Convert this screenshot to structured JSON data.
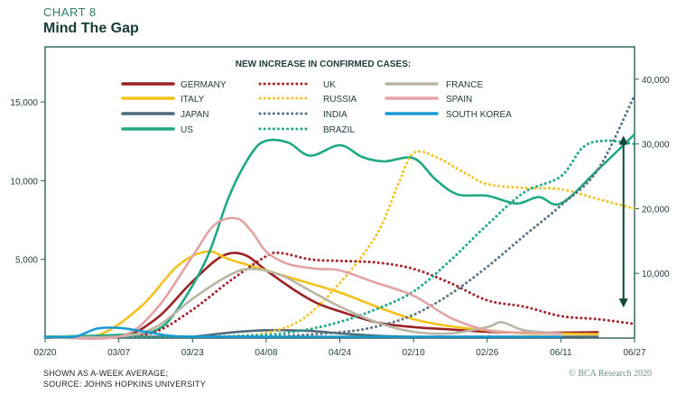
{
  "header": {
    "chart_label": "CHART 8",
    "title": "Mind The Gap"
  },
  "footer": {
    "note1": "SHOWN AS A-WEEK AVERAGE;",
    "note2": "SOURCE: JOHNS HOPKINS UNIVERSITY",
    "credit": "© BCA Research 2020"
  },
  "colors": {
    "frame": "#2b5f56",
    "grid": "#e6eeee",
    "arrow": "#14453d"
  },
  "chart_data": {
    "type": "line",
    "title": "Mind The Gap",
    "legend_title": "NEW INCREASE IN CONFIRMED CASES:",
    "legend_placement": "top-center",
    "grid": false,
    "x_ticks": [
      "02/20",
      "03/07",
      "03/23",
      "04/08",
      "04/24",
      "02/10",
      "02/26",
      "06/11",
      "06/27"
    ],
    "x_range": [
      0,
      8
    ],
    "y_left": {
      "ticks": [
        "5,000",
        "10,000",
        "15,000"
      ],
      "tick_values": [
        5000,
        10000,
        15000
      ],
      "range": [
        0,
        18500
      ]
    },
    "y_right": {
      "ticks": [
        "10,000",
        "20,000",
        "30,000",
        "40,000"
      ],
      "tick_values": [
        10000,
        20000,
        30000,
        40000
      ],
      "range": [
        0,
        45000
      ]
    },
    "series": [
      {
        "name": "GERMANY",
        "axis": "left",
        "color": "#9b2222",
        "style": "solid",
        "points": [
          [
            0,
            0
          ],
          [
            1,
            100
          ],
          [
            1.5,
            1200
          ],
          [
            2,
            3600
          ],
          [
            2.4,
            5200
          ],
          [
            2.7,
            5300
          ],
          [
            3,
            4300
          ],
          [
            3.4,
            3000
          ],
          [
            3.7,
            2200
          ],
          [
            4,
            1700
          ],
          [
            4.5,
            1000
          ],
          [
            5,
            700
          ],
          [
            5.5,
            550
          ],
          [
            6,
            400
          ],
          [
            6.5,
            350
          ],
          [
            7,
            350
          ],
          [
            7.5,
            380
          ]
        ]
      },
      {
        "name": "ITALY",
        "axis": "left",
        "color": "#f2c21b",
        "style": "solid",
        "points": [
          [
            0,
            0
          ],
          [
            0.7,
            150
          ],
          [
            1.3,
            2000
          ],
          [
            1.8,
            4600
          ],
          [
            2.2,
            5500
          ],
          [
            2.5,
            5000
          ],
          [
            3,
            4300
          ],
          [
            3.5,
            3600
          ],
          [
            4,
            2900
          ],
          [
            4.5,
            2000
          ],
          [
            5,
            1200
          ],
          [
            5.5,
            750
          ],
          [
            6,
            500
          ],
          [
            6.5,
            300
          ],
          [
            7,
            280
          ],
          [
            7.5,
            250
          ]
        ]
      },
      {
        "name": "JAPAN",
        "axis": "left",
        "color": "#4f6b7a",
        "style": "solid",
        "points": [
          [
            0,
            0
          ],
          [
            1.5,
            0
          ],
          [
            2,
            100
          ],
          [
            2.5,
            350
          ],
          [
            3,
            500
          ],
          [
            3.6,
            450
          ],
          [
            4,
            300
          ],
          [
            4.5,
            150
          ],
          [
            5,
            60
          ],
          [
            5.5,
            40
          ],
          [
            6,
            40
          ],
          [
            7,
            60
          ],
          [
            7.5,
            80
          ]
        ]
      },
      {
        "name": "US",
        "axis": "right",
        "color": "#20a884",
        "style": "solid",
        "points": [
          [
            0,
            0
          ],
          [
            1,
            500
          ],
          [
            1.5,
            1200
          ],
          [
            1.8,
            4500
          ],
          [
            2.2,
            12500
          ],
          [
            2.5,
            22000
          ],
          [
            2.8,
            28500
          ],
          [
            3,
            30500
          ],
          [
            3.3,
            30200
          ],
          [
            3.6,
            28200
          ],
          [
            4,
            29800
          ],
          [
            4.3,
            28000
          ],
          [
            4.6,
            27300
          ],
          [
            5,
            27800
          ],
          [
            5.3,
            24500
          ],
          [
            5.6,
            22200
          ],
          [
            6,
            22000
          ],
          [
            6.4,
            20800
          ],
          [
            6.7,
            21800
          ],
          [
            7,
            20800
          ],
          [
            7.5,
            26000
          ],
          [
            8,
            31500
          ]
        ]
      },
      {
        "name": "UK",
        "axis": "left",
        "color": "#a6242d",
        "style": "dotted",
        "points": [
          [
            0,
            0
          ],
          [
            1,
            50
          ],
          [
            1.5,
            400
          ],
          [
            2,
            1800
          ],
          [
            2.5,
            3600
          ],
          [
            3,
            5200
          ],
          [
            3.2,
            5400
          ],
          [
            3.6,
            5000
          ],
          [
            4,
            4900
          ],
          [
            4.5,
            4800
          ],
          [
            5,
            4400
          ],
          [
            5.5,
            3500
          ],
          [
            6,
            2400
          ],
          [
            6.5,
            2000
          ],
          [
            7,
            1400
          ],
          [
            7.5,
            1200
          ],
          [
            8,
            900
          ]
        ]
      },
      {
        "name": "RUSSIA",
        "axis": "right",
        "color": "#f3c328",
        "style": "dotted",
        "points": [
          [
            0,
            0
          ],
          [
            2,
            100
          ],
          [
            2.5,
            300
          ],
          [
            3,
            800
          ],
          [
            3.5,
            3000
          ],
          [
            4,
            8500
          ],
          [
            4.5,
            16000
          ],
          [
            4.8,
            24000
          ],
          [
            5,
            28600
          ],
          [
            5.3,
            28000
          ],
          [
            5.7,
            25500
          ],
          [
            6,
            23800
          ],
          [
            6.5,
            23200
          ],
          [
            7,
            23000
          ],
          [
            7.5,
            21500
          ],
          [
            8,
            20000
          ]
        ]
      },
      {
        "name": "INDIA",
        "axis": "right",
        "color": "#5a7485",
        "style": "dotted",
        "points": [
          [
            0,
            0
          ],
          [
            2,
            50
          ],
          [
            3,
            200
          ],
          [
            4,
            900
          ],
          [
            4.5,
            1800
          ],
          [
            5,
            3600
          ],
          [
            5.5,
            6800
          ],
          [
            6,
            11000
          ],
          [
            6.5,
            15800
          ],
          [
            7,
            20500
          ],
          [
            7.5,
            26000
          ],
          [
            8,
            37500
          ]
        ]
      },
      {
        "name": "BRAZIL",
        "axis": "right",
        "color": "#22a88b",
        "style": "dotted",
        "points": [
          [
            0,
            0
          ],
          [
            2,
            100
          ],
          [
            3,
            500
          ],
          [
            3.5,
            1200
          ],
          [
            4,
            2500
          ],
          [
            4.5,
            4500
          ],
          [
            5,
            7200
          ],
          [
            5.5,
            12000
          ],
          [
            6,
            17500
          ],
          [
            6.5,
            22500
          ],
          [
            7,
            25000
          ],
          [
            7.3,
            29500
          ],
          [
            7.6,
            30500
          ],
          [
            8,
            30000
          ]
        ]
      },
      {
        "name": "FRANCE",
        "axis": "left",
        "color": "#b8b5a2",
        "style": "solid",
        "points": [
          [
            0,
            0
          ],
          [
            1,
            100
          ],
          [
            1.5,
            700
          ],
          [
            2,
            2500
          ],
          [
            2.5,
            4000
          ],
          [
            2.8,
            4400
          ],
          [
            3.2,
            4000
          ],
          [
            3.6,
            3000
          ],
          [
            4,
            2000
          ],
          [
            4.5,
            1000
          ],
          [
            5,
            400
          ],
          [
            5.5,
            300
          ],
          [
            6,
            700
          ],
          [
            6.2,
            1000
          ],
          [
            6.5,
            500
          ],
          [
            7,
            300
          ]
        ]
      },
      {
        "name": "SPAIN",
        "axis": "left",
        "color": "#e3a3a4",
        "style": "solid",
        "points": [
          [
            0,
            0
          ],
          [
            1,
            80
          ],
          [
            1.5,
            1800
          ],
          [
            2,
            5200
          ],
          [
            2.3,
            7200
          ],
          [
            2.6,
            7600
          ],
          [
            2.8,
            6800
          ],
          [
            3,
            5500
          ],
          [
            3.3,
            4700
          ],
          [
            3.7,
            4400
          ],
          [
            4,
            4300
          ],
          [
            4.5,
            3500
          ],
          [
            5,
            2700
          ],
          [
            5.5,
            1300
          ],
          [
            6,
            500
          ],
          [
            6.5,
            350
          ],
          [
            7,
            280
          ]
        ]
      },
      {
        "name": "SOUTH KOREA",
        "axis": "left",
        "color": "#1a9ad2",
        "style": "solid",
        "points": [
          [
            0,
            0
          ],
          [
            0.4,
            0
          ],
          [
            0.7,
            600
          ],
          [
            1,
            650
          ],
          [
            1.3,
            450
          ],
          [
            1.7,
            150
          ],
          [
            2,
            100
          ],
          [
            3,
            60
          ],
          [
            4,
            40
          ],
          [
            5,
            30
          ],
          [
            6,
            40
          ],
          [
            7,
            40
          ]
        ]
      }
    ],
    "annotations": [
      {
        "type": "double-arrow",
        "x": 7.85,
        "y_from_right": 5000,
        "y_to_right": 31000
      }
    ]
  }
}
